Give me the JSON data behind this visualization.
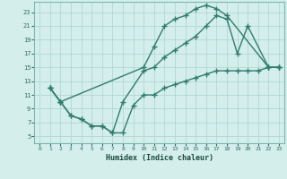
{
  "xlabel": "Humidex (Indice chaleur)",
  "bg_color": "#d4eeeb",
  "grid_color": "#aad4cf",
  "line_color": "#2e7d6e",
  "xlim": [
    -0.5,
    23.5
  ],
  "ylim": [
    4,
    24.5
  ],
  "xticks": [
    0,
    1,
    2,
    3,
    4,
    5,
    6,
    7,
    8,
    9,
    10,
    11,
    12,
    13,
    14,
    15,
    16,
    17,
    18,
    19,
    20,
    21,
    22,
    23
  ],
  "yticks": [
    5,
    7,
    9,
    11,
    13,
    15,
    17,
    19,
    21,
    23
  ],
  "line1_x": [
    1,
    2,
    10,
    11,
    12,
    13,
    14,
    15,
    16,
    17,
    18,
    22,
    23
  ],
  "line1_y": [
    12,
    10,
    15,
    18,
    21,
    22,
    22.5,
    23.5,
    24,
    23.5,
    22.5,
    15,
    15
  ],
  "line2_x": [
    1,
    2,
    3,
    4,
    5,
    6,
    7,
    8,
    10,
    11,
    12,
    13,
    14,
    15,
    16,
    17,
    18,
    19,
    20,
    22,
    23
  ],
  "line2_y": [
    12,
    10,
    8,
    7.5,
    6.5,
    6.5,
    5.5,
    10,
    14.5,
    15,
    16.5,
    17.5,
    18.5,
    19.5,
    21,
    22.5,
    22,
    17,
    21,
    15,
    15
  ],
  "line3_x": [
    1,
    2,
    3,
    4,
    5,
    6,
    7,
    8,
    9,
    10,
    11,
    12,
    13,
    14,
    15,
    16,
    17,
    18,
    19,
    20,
    21,
    22,
    23
  ],
  "line3_y": [
    12,
    10,
    8,
    7.5,
    6.5,
    6.5,
    5.5,
    5.5,
    9.5,
    11,
    11,
    12,
    12.5,
    13,
    13.5,
    14,
    14.5,
    14.5,
    14.5,
    14.5,
    14.5,
    15,
    15
  ]
}
